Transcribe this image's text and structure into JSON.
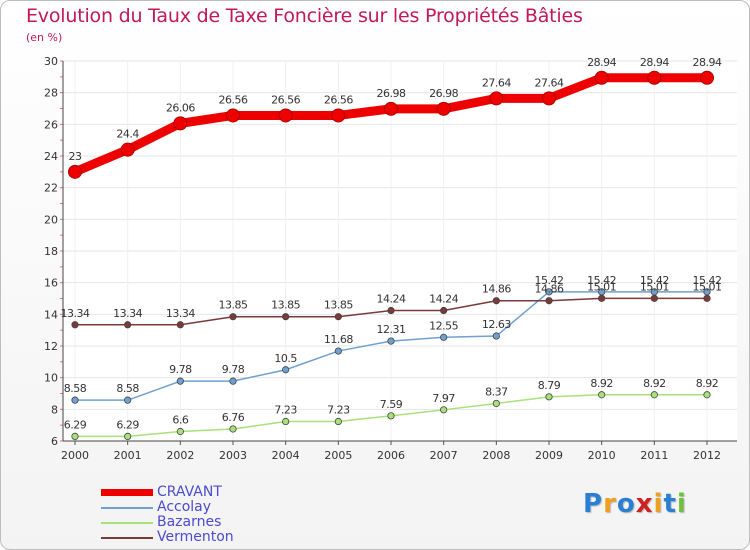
{
  "chart_data": {
    "type": "line",
    "title": "Evolution du Taux de Taxe Foncière sur les Propriétés Bâties",
    "ylabel": "(en %)",
    "ylim": [
      6,
      30
    ],
    "yticks": [
      6,
      8,
      10,
      12,
      14,
      16,
      18,
      20,
      22,
      24,
      26,
      28,
      30
    ],
    "x": [
      "2000",
      "2001",
      "2002",
      "2003",
      "2004",
      "2005",
      "2006",
      "2007",
      "2008",
      "2009",
      "2010",
      "2011",
      "2012"
    ],
    "series": [
      {
        "name": "CRAVANT",
        "color": "#ee0000",
        "values": [
          23,
          24.4,
          26.06,
          26.56,
          26.56,
          26.56,
          26.98,
          26.98,
          27.64,
          27.64,
          28.94,
          28.94,
          28.94
        ],
        "labels": [
          "23",
          "24.4",
          "26.06",
          "26.56",
          "26.56",
          "26.56",
          "26.98",
          "26.98",
          "27.64",
          "27.64",
          "28.94",
          "28.94",
          "28.94"
        ]
      },
      {
        "name": "Accolay",
        "color": "#6fa0d0",
        "values": [
          8.58,
          8.58,
          9.78,
          9.78,
          10.5,
          11.68,
          12.31,
          12.55,
          12.63,
          15.42,
          15.42,
          15.42,
          15.42
        ],
        "labels": [
          "8.58",
          "8.58",
          "9.78",
          "9.78",
          "10.5",
          "11.68",
          "12.31",
          "12.55",
          "12.63",
          "15.42",
          "15.42",
          "15.42",
          "15.42"
        ]
      },
      {
        "name": "Bazarnes",
        "color": "#a8e07a",
        "values": [
          6.29,
          6.29,
          6.6,
          6.76,
          7.23,
          7.23,
          7.59,
          7.97,
          8.37,
          8.79,
          8.92,
          8.92,
          8.92
        ],
        "labels": [
          "6.29",
          "6.29",
          "6.6",
          "6.76",
          "7.23",
          "7.23",
          "7.59",
          "7.97",
          "8.37",
          "8.79",
          "8.92",
          "8.92",
          "8.92"
        ]
      },
      {
        "name": "Vermenton",
        "color": "#7a3a3a",
        "values": [
          13.34,
          13.34,
          13.34,
          13.85,
          13.85,
          13.85,
          14.24,
          14.24,
          14.86,
          14.86,
          15.01,
          15.01,
          15.01
        ],
        "labels": [
          "13.34",
          "13.34",
          "13.34",
          "13.85",
          "13.85",
          "13.85",
          "14.24",
          "14.24",
          "14.86",
          "14.86",
          "15.01",
          "15.01",
          "15.01"
        ]
      }
    ]
  },
  "brand": {
    "letters": [
      "P",
      "r",
      "o",
      "x",
      "i",
      "t",
      "i"
    ],
    "colors": [
      "#2a7fd4",
      "#f0a020",
      "#2a7fd4",
      "#d02020",
      "#f0a020",
      "#2a7fd4",
      "#70c040"
    ]
  }
}
